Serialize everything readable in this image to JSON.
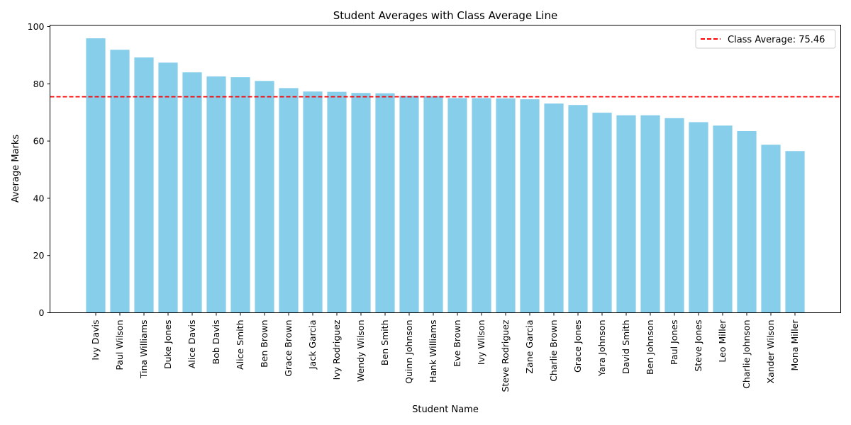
{
  "chart_data": {
    "type": "bar",
    "title": "Student Averages with Class Average Line",
    "xlabel": "Student Name",
    "ylabel": "Average Marks",
    "ylim": [
      0,
      100.5
    ],
    "yticks": [
      0,
      20,
      40,
      60,
      80,
      100
    ],
    "grid": false,
    "legend_position": "top-right",
    "bar_color": "#87CEEB",
    "categories": [
      "Ivy Davis",
      "Paul Wilson",
      "Tina Williams",
      "Duke Jones",
      "Alice Davis",
      "Bob Davis",
      "Alice Smith",
      "Ben Brown",
      "Grace Brown",
      "Jack Garcia",
      "Ivy Rodriguez",
      "Wendy Wilson",
      "Ben Smith",
      "Quinn Johnson",
      "Hank Williams",
      "Eve Brown",
      "Ivy Wilson",
      "Steve Rodriguez",
      "Zane Garcia",
      "Charlie Brown",
      "Grace Jones",
      "Yara Johnson",
      "David Smith",
      "Ben Johnson",
      "Paul Jones",
      "Steve Jones",
      "Leo Miller",
      "Charlie Johnson",
      "Xander Wilson",
      "Mona Miller"
    ],
    "values": [
      95.9,
      91.9,
      89.2,
      87.4,
      84.0,
      82.6,
      82.3,
      81.0,
      78.5,
      77.3,
      77.2,
      76.8,
      76.7,
      75.8,
      75.7,
      75.0,
      75.0,
      74.9,
      74.6,
      73.1,
      72.6,
      69.9,
      69.0,
      69.0,
      68.0,
      66.6,
      65.4,
      63.5,
      58.7,
      56.5
    ],
    "reference_line": {
      "value": 75.46,
      "label": "Class Average: 75.46",
      "color": "#FF0000",
      "style": "dashed"
    }
  }
}
